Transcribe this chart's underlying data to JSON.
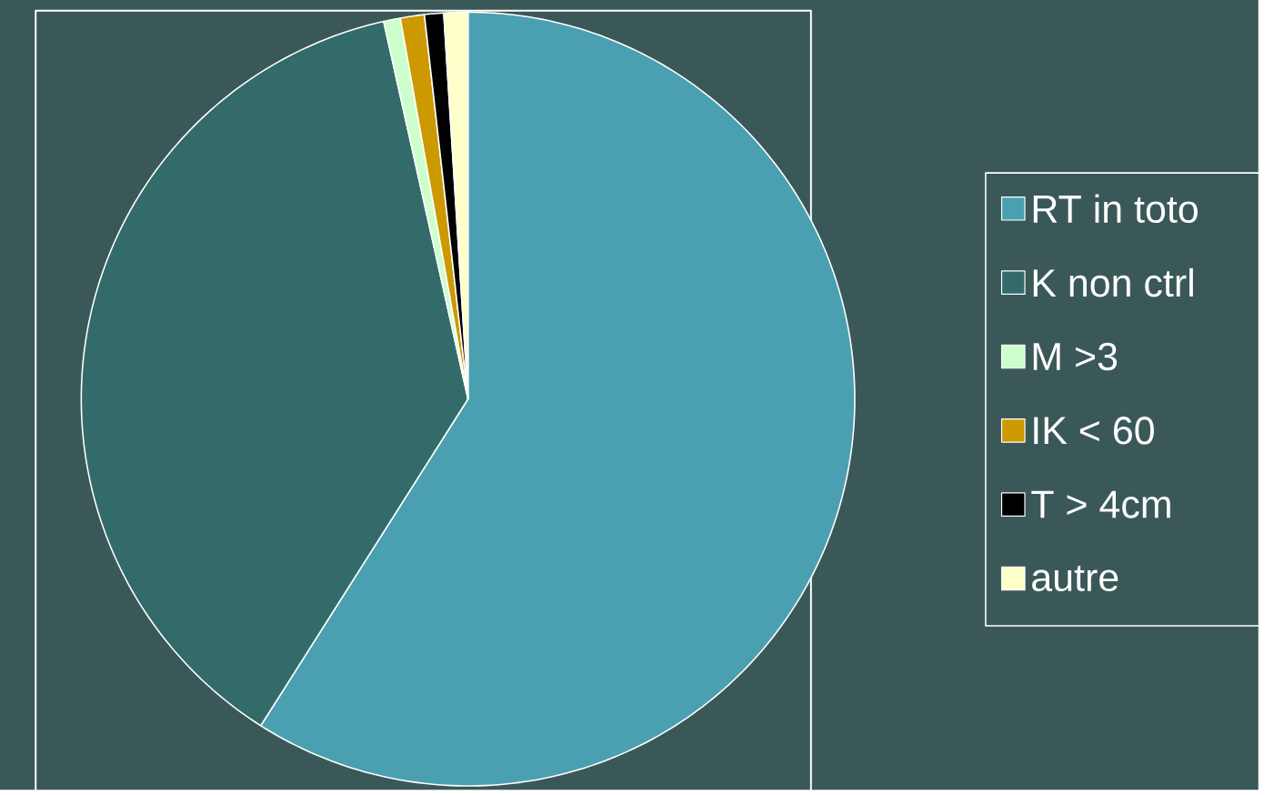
{
  "chart_data": {
    "type": "pie",
    "categories": [
      "RT in toto",
      "K non ctrl",
      "M >3",
      "IK < 60",
      "T > 4cm",
      "autre"
    ],
    "values": [
      59,
      37.5,
      0.7,
      1,
      0.8,
      1
    ],
    "colors": [
      "#4aa0b0",
      "#336b6b",
      "#ccffcc",
      "#cc9900",
      "#000000",
      "#ffffcc"
    ],
    "legend": "right"
  }
}
